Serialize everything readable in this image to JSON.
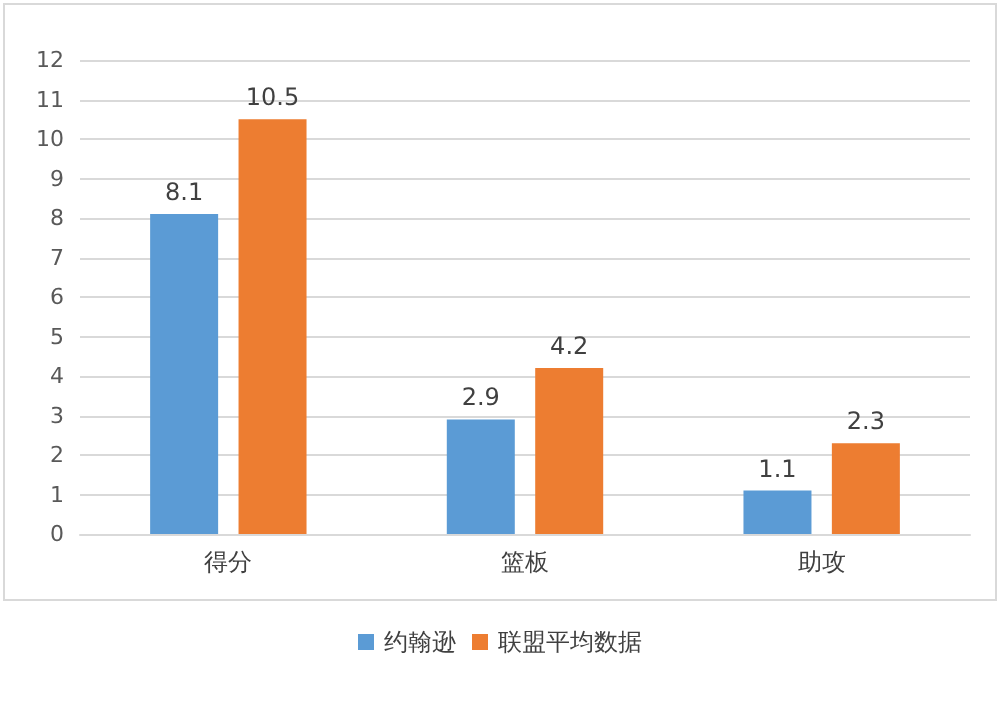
{
  "chart_data": {
    "type": "bar",
    "categories": [
      "得分",
      "篮板",
      "助攻"
    ],
    "series": [
      {
        "name": "约翰逊",
        "color": "#5b9bd5",
        "values": [
          8.1,
          2.9,
          1.1
        ]
      },
      {
        "name": "联盟平均数据",
        "color": "#ed7d31",
        "values": [
          10.5,
          4.2,
          2.3
        ]
      }
    ],
    "ylim": [
      0,
      12
    ],
    "yticks": [
      0,
      1,
      2,
      3,
      4,
      5,
      6,
      7,
      8,
      9,
      10,
      11,
      12
    ],
    "grid": "y",
    "legend": "bottom",
    "data_labels": true
  }
}
